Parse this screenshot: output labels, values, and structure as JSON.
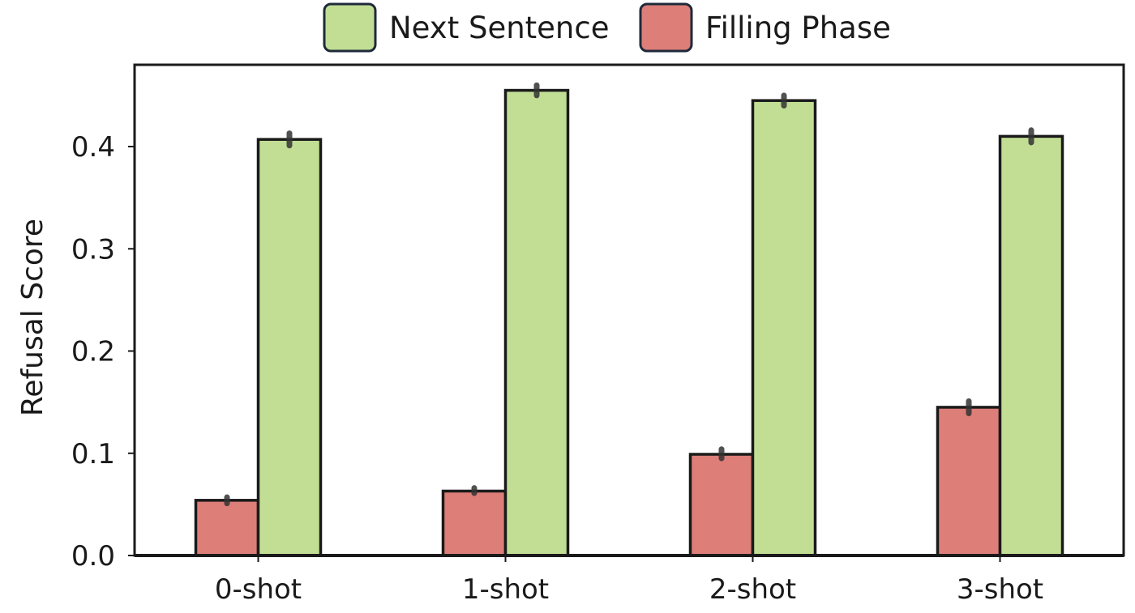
{
  "chart_data": {
    "type": "bar",
    "title": "",
    "xlabel": "",
    "ylabel": "Refusal Score",
    "ylim": [
      0,
      0.48
    ],
    "yticks": [
      0.0,
      0.1,
      0.2,
      0.3,
      0.4
    ],
    "ytick_labels": [
      "0.0",
      "0.1",
      "0.2",
      "0.3",
      "0.4"
    ],
    "categories": [
      "0-shot",
      "1-shot",
      "2-shot",
      "3-shot"
    ],
    "grid": false,
    "legend_position": "top-center",
    "series": [
      {
        "name": "Filling Phase",
        "color": "#dd7e79",
        "values": [
          0.054,
          0.063,
          0.099,
          0.145
        ],
        "error_low": [
          0.051,
          0.061,
          0.095,
          0.139
        ],
        "error_high": [
          0.057,
          0.066,
          0.104,
          0.151
        ]
      },
      {
        "name": "Next Sentence",
        "color": "#c2de95",
        "values": [
          0.407,
          0.455,
          0.445,
          0.41
        ],
        "error_low": [
          0.401,
          0.45,
          0.44,
          0.404
        ],
        "error_high": [
          0.413,
          0.46,
          0.45,
          0.416
        ]
      }
    ],
    "legend_order": [
      "Next Sentence",
      "Filling Phase"
    ]
  }
}
